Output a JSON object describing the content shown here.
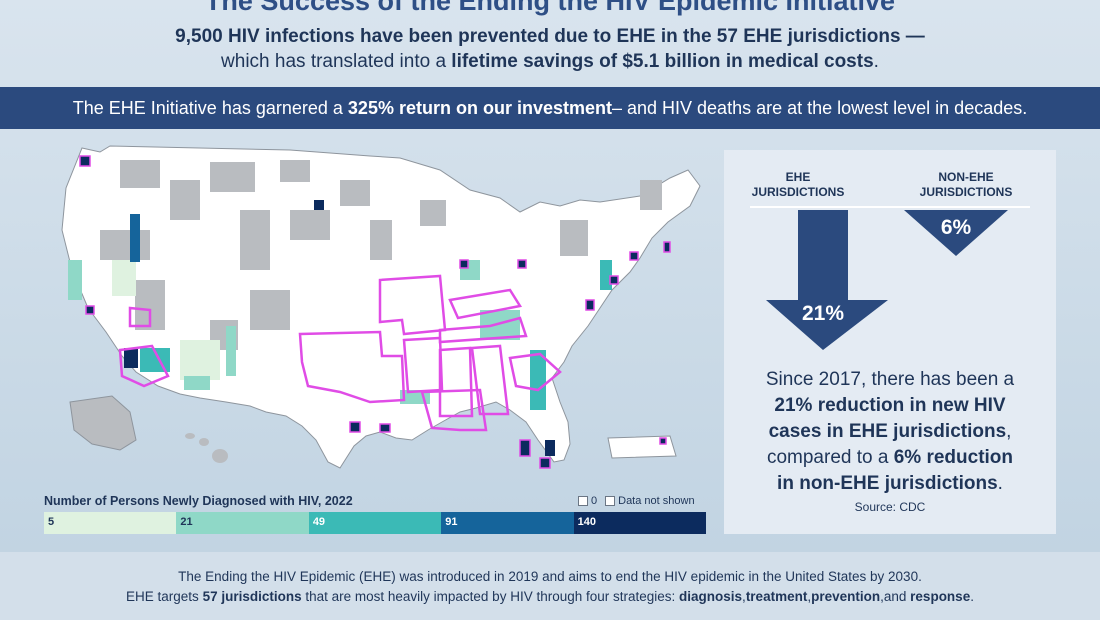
{
  "header": {
    "title": "The Success of the Ending the HIV Epidemic Initiative",
    "line1": "9,500 HIV infections have been prevented due to EHE in the 57 EHE jurisdictions —",
    "line2_pre": "which has translated into a ",
    "line2_bold": "lifetime savings of $5.1 billion in medical costs",
    "line2_post": "."
  },
  "banner": {
    "pre": "The EHE Initiative has garnered a ",
    "bold": "325% return on our investment",
    "post": " – and HIV deaths are at the lowest level in decades."
  },
  "map": {
    "legend_title": "Number of Persons Newly Diagnosed with HIV, 2022",
    "key_zero": "0",
    "key_not_shown": "Data not shown",
    "scale": [
      {
        "label": "5",
        "color": "#dff2e0",
        "text_color": "#1f3558"
      },
      {
        "label": "21",
        "color": "#8fd8c7",
        "text_color": "#1f3558"
      },
      {
        "label": "49",
        "color": "#3bbab6",
        "text_color": "#ffffff"
      },
      {
        "label": "91",
        "color": "#15649b",
        "text_color": "#ffffff"
      },
      {
        "label": "140",
        "color": "#0c2b5e",
        "text_color": "#ffffff"
      }
    ],
    "colors": {
      "land": "#ffffff",
      "not_shown": "#b9bcc0",
      "ehe_outline": "#e04ce6",
      "borders": "#8e959d"
    }
  },
  "panel": {
    "ehe_heading_1": "EHE",
    "ehe_heading_2": "JURISDICTIONS",
    "non_ehe_heading_1": "NON-EHE",
    "non_ehe_heading_2": "JURISDICTIONS",
    "ehe_value": "21%",
    "non_ehe_value": "6%",
    "text_l1": "Since 2017, there has been a",
    "text_l2": "21% reduction in new HIV",
    "text_l3_bold": "cases in EHE jurisdictions",
    "text_l3_post": ",",
    "text_l4_pre": "compared to a ",
    "text_l4_bold": "6% reduction",
    "text_l5_bold": "in non-EHE jurisdictions",
    "text_l5_post": ".",
    "source": "Source: CDC",
    "arrow_color": "#2b4a7e"
  },
  "footer": {
    "line1": "The Ending the HIV Epidemic (EHE) was introduced in 2019 and aims to end the HIV epidemic in the United States by 2030.",
    "line2_pre": "EHE targets ",
    "line2_bold": "57 jurisdictions",
    "line2_mid": " that are most heavily impacted by HIV through four strategies: ",
    "s1": "diagnosis",
    "s2": "treatment",
    "s3": "prevention",
    "and": "and",
    "s4": "response",
    "end": "."
  }
}
